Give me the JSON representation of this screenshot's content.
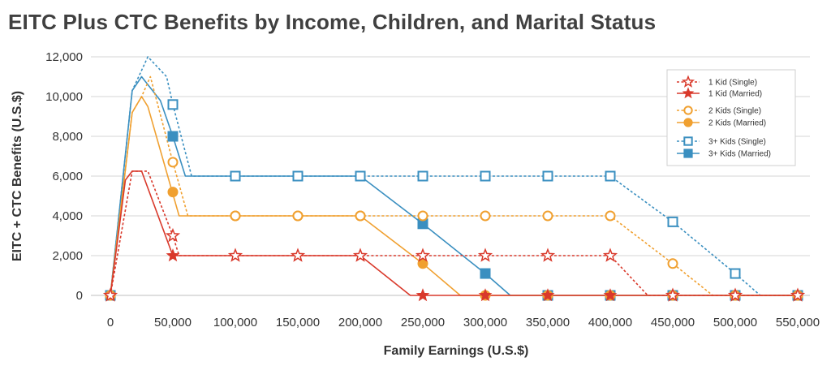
{
  "chart_data": {
    "type": "line",
    "title": "EITC Plus CTC Benefits by Income, Children, and Marital Status",
    "xlabel": "Family Earnings (U.S.$)",
    "ylabel": "EITC + CTC Benefits (U.S.$)",
    "xlim": [
      -10000,
      560000
    ],
    "ylim": [
      0,
      12000
    ],
    "x_ticks": [
      0,
      50000,
      100000,
      150000,
      200000,
      250000,
      300000,
      350000,
      400000,
      450000,
      500000,
      550000
    ],
    "x_tick_labels": [
      "0",
      "50,000",
      "100,000",
      "150,000",
      "200,000",
      "250,000",
      "300,000",
      "350,000",
      "400,000",
      "450,000",
      "500,000",
      "550,000"
    ],
    "y_ticks": [
      0,
      2000,
      4000,
      6000,
      8000,
      10000,
      12000
    ],
    "y_tick_labels": [
      "0",
      "2,000",
      "4,000",
      "6,000",
      "8,000",
      "10,000",
      "12,000"
    ],
    "grid": "horizontal",
    "legend_position": "top-right",
    "series": [
      {
        "name": "1 Kid (Single)",
        "color": "#d9392b",
        "dash": true,
        "marker": "star-open",
        "x": [
          0,
          17500,
          25000,
          30000,
          50000,
          55000,
          100000,
          150000,
          200000,
          250000,
          300000,
          350000,
          400000,
          430000,
          450000,
          500000,
          550000
        ],
        "y": [
          0,
          6250,
          6250,
          6250,
          3000,
          2000,
          2000,
          2000,
          2000,
          2000,
          2000,
          2000,
          2000,
          0,
          0,
          0,
          0
        ],
        "marker_x": [
          0,
          50000,
          100000,
          150000,
          200000,
          250000,
          300000,
          350000,
          400000,
          450000,
          500000,
          550000
        ],
        "marker_y": [
          0,
          3000,
          2000,
          2000,
          2000,
          2000,
          2000,
          2000,
          2000,
          0,
          0,
          0
        ]
      },
      {
        "name": "1 Kid (Married)",
        "color": "#d9392b",
        "dash": false,
        "marker": "star-filled",
        "x": [
          0,
          12000,
          17500,
          25000,
          50000,
          100000,
          150000,
          200000,
          240000,
          250000,
          300000,
          350000,
          400000,
          450000,
          500000,
          550000
        ],
        "y": [
          0,
          5800,
          6250,
          6250,
          2000,
          2000,
          2000,
          2000,
          0,
          0,
          0,
          0,
          0,
          0,
          0,
          0
        ],
        "marker_x": [
          0,
          50000,
          100000,
          150000,
          200000,
          250000,
          300000,
          350000,
          400000,
          450000,
          500000,
          550000
        ],
        "marker_y": [
          0,
          2000,
          2000,
          2000,
          2000,
          0,
          0,
          0,
          0,
          0,
          0,
          0
        ]
      },
      {
        "name": "2 Kids (Single)",
        "color": "#f0a030",
        "dash": true,
        "marker": "circle-open",
        "x": [
          0,
          17500,
          25000,
          32000,
          50000,
          62000,
          100000,
          150000,
          200000,
          250000,
          300000,
          350000,
          400000,
          450000,
          482000,
          500000,
          550000
        ],
        "y": [
          0,
          9200,
          10000,
          11000,
          6700,
          4000,
          4000,
          4000,
          4000,
          4000,
          4000,
          4000,
          4000,
          1600,
          0,
          0,
          0
        ],
        "marker_x": [
          0,
          50000,
          100000,
          150000,
          200000,
          250000,
          300000,
          350000,
          400000,
          450000,
          500000,
          550000
        ],
        "marker_y": [
          0,
          6700,
          4000,
          4000,
          4000,
          4000,
          4000,
          4000,
          4000,
          1600,
          0,
          0
        ]
      },
      {
        "name": "2 Kids (Married)",
        "color": "#f0a030",
        "dash": false,
        "marker": "circle-filled",
        "x": [
          0,
          17500,
          25000,
          30000,
          55000,
          100000,
          150000,
          200000,
          250000,
          280000,
          300000,
          350000,
          400000,
          450000,
          500000,
          550000
        ],
        "y": [
          0,
          9200,
          10000,
          9500,
          4000,
          4000,
          4000,
          4000,
          1600,
          0,
          0,
          0,
          0,
          0,
          0,
          0
        ],
        "marker_x": [
          0,
          50000,
          100000,
          150000,
          200000,
          250000,
          300000,
          350000,
          400000,
          450000,
          500000,
          550000
        ],
        "marker_y": [
          0,
          5200,
          4000,
          4000,
          4000,
          1600,
          0,
          0,
          0,
          0,
          0,
          0
        ]
      },
      {
        "name": "3+ Kids (Single)",
        "color": "#3a8fc0",
        "dash": true,
        "marker": "square-open",
        "x": [
          0,
          17500,
          30000,
          45000,
          50000,
          65000,
          100000,
          150000,
          200000,
          250000,
          300000,
          350000,
          400000,
          450000,
          500000,
          520000,
          550000
        ],
        "y": [
          0,
          10300,
          12000,
          11000,
          9600,
          6000,
          6000,
          6000,
          6000,
          6000,
          6000,
          6000,
          6000,
          3700,
          1100,
          0,
          0
        ],
        "marker_x": [
          0,
          50000,
          100000,
          150000,
          200000,
          250000,
          300000,
          350000,
          400000,
          450000,
          500000,
          550000
        ],
        "marker_y": [
          0,
          9600,
          6000,
          6000,
          6000,
          6000,
          6000,
          6000,
          6000,
          3700,
          1100,
          0
        ]
      },
      {
        "name": "3+ Kids (Married)",
        "color": "#3a8fc0",
        "dash": false,
        "marker": "square-filled",
        "x": [
          0,
          17500,
          25000,
          40000,
          50000,
          60000,
          100000,
          150000,
          200000,
          250000,
          300000,
          320000,
          350000,
          400000,
          450000,
          500000,
          550000
        ],
        "y": [
          0,
          10300,
          11000,
          9800,
          8000,
          6000,
          6000,
          6000,
          6000,
          3600,
          1100,
          0,
          0,
          0,
          0,
          0,
          0
        ],
        "marker_x": [
          0,
          50000,
          100000,
          150000,
          200000,
          250000,
          300000,
          350000,
          400000,
          450000,
          500000,
          550000
        ],
        "marker_y": [
          0,
          8000,
          6000,
          6000,
          6000,
          3600,
          1100,
          0,
          0,
          0,
          0,
          0
        ]
      }
    ]
  }
}
